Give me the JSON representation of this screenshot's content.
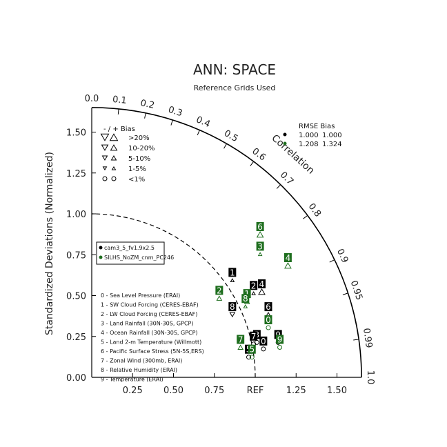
{
  "chart_data": {
    "type": "scatter",
    "title": "ANN: SPACE",
    "subtitle": "Reference Grids Used",
    "ylabel": "Standardized Deviations (Normalized)",
    "correlation_label": "Correlation",
    "std_range": [
      0,
      1.65
    ],
    "x_ticks": [
      {
        "value": 0.25,
        "label": "0.25"
      },
      {
        "value": 0.5,
        "label": "0.50"
      },
      {
        "value": 0.75,
        "label": "0.75"
      },
      {
        "value": 1.0,
        "label": "REF"
      },
      {
        "value": 1.25,
        "label": "1.25"
      },
      {
        "value": 1.5,
        "label": "1.50"
      }
    ],
    "y_ticks": [
      {
        "value": 0.0,
        "label": "0.00"
      },
      {
        "value": 0.25,
        "label": "0.25"
      },
      {
        "value": 0.5,
        "label": "0.50"
      },
      {
        "value": 0.75,
        "label": "0.75"
      },
      {
        "value": 1.0,
        "label": "1.00"
      },
      {
        "value": 1.25,
        "label": "1.25"
      },
      {
        "value": 1.5,
        "label": "1.50"
      }
    ],
    "corr_ticks": [
      {
        "value": 0.0,
        "label": "0.0"
      },
      {
        "value": 0.1,
        "label": "0.1"
      },
      {
        "value": 0.2,
        "label": "0.2"
      },
      {
        "value": 0.3,
        "label": "0.3"
      },
      {
        "value": 0.4,
        "label": "0.4"
      },
      {
        "value": 0.5,
        "label": "0.5"
      },
      {
        "value": 0.6,
        "label": "0.6"
      },
      {
        "value": 0.7,
        "label": "0.7"
      },
      {
        "value": 0.8,
        "label": "0.8"
      },
      {
        "value": 0.9,
        "label": "0.9"
      },
      {
        "value": 0.95,
        "label": "0.95"
      },
      {
        "value": 0.99,
        "label": "0.99"
      },
      {
        "value": 1.0,
        "label": "1.0"
      }
    ],
    "reference_arc_std": 1.0,
    "bias_legend": {
      "header": "-  /  +      Bias",
      "rows": [
        {
          "label": ">20%",
          "size": 11
        },
        {
          "label": "10-20%",
          "size": 9
        },
        {
          "label": "5-10%",
          "size": 7
        },
        {
          "label": "1-5%",
          "size": 5
        },
        {
          "label": "<1%",
          "size": 0
        }
      ]
    },
    "rmse_header": "RMSE  Bias",
    "series": [
      {
        "name": "cam3_5_fv1.9x2.5",
        "color": "#000000",
        "rmse": "1.000",
        "bias": "1.000"
      },
      {
        "name": "SILHS_NoZM_cnm_PC246",
        "color": "#1e6e1e",
        "rmse": "1.208",
        "bias": "1.324"
      }
    ],
    "variables": [
      "0 - Sea Level Pressure (ERAI)",
      "1 - SW Cloud Forcing (CERES-EBAF)",
      "2 - LW Cloud Forcing (CERES-EBAF)",
      "3 - Land Rainfall (30N-30S, GPCP)",
      "4 - Ocean Rainfall (30N-30S, GPCP)",
      "5 - Land 2-m Temperature (Willmott)",
      "6 - Pacific Surface Stress (5N-5S,ERS)",
      "7 - Zonal Wind (300mb, ERAI)",
      "8 - Relative Humidity (ERAI)",
      "9 - Temperature (ERAI)"
    ],
    "points": [
      {
        "series": 0,
        "id": "0",
        "x": 1.05,
        "y": 0.22,
        "bias_sign": "-",
        "bias_size": 0
      },
      {
        "series": 0,
        "id": "1",
        "x": 0.86,
        "y": 0.64,
        "bias_sign": "+",
        "bias_size": 5
      },
      {
        "series": 0,
        "id": "2",
        "x": 0.99,
        "y": 0.56,
        "bias_sign": "+",
        "bias_size": 5
      },
      {
        "series": 0,
        "id": "3",
        "x": 1.01,
        "y": 0.26,
        "bias_sign": "-",
        "bias_size": 0
      },
      {
        "series": 0,
        "id": "4",
        "x": 1.04,
        "y": 0.57,
        "bias_sign": "+",
        "bias_size": 9
      },
      {
        "series": 0,
        "id": "5",
        "x": 0.96,
        "y": 0.17,
        "bias_sign": "-",
        "bias_size": 0
      },
      {
        "series": 0,
        "id": "6",
        "x": 1.08,
        "y": 0.43,
        "bias_sign": "+",
        "bias_size": 7
      },
      {
        "series": 0,
        "id": "7",
        "x": 0.99,
        "y": 0.25,
        "bias_sign": "-",
        "bias_size": 0
      },
      {
        "series": 0,
        "id": "8",
        "x": 0.86,
        "y": 0.43,
        "bias_sign": "-",
        "bias_size": 7
      },
      {
        "series": 0,
        "id": "9",
        "x": 1.14,
        "y": 0.26,
        "bias_sign": "-",
        "bias_size": 0
      },
      {
        "series": 1,
        "id": "0",
        "x": 1.08,
        "y": 0.35,
        "bias_sign": "-",
        "bias_size": 0
      },
      {
        "series": 1,
        "id": "1",
        "x": 0.95,
        "y": 0.51,
        "bias_sign": "+",
        "bias_size": 7
      },
      {
        "series": 1,
        "id": "2",
        "x": 0.78,
        "y": 0.53,
        "bias_sign": "+",
        "bias_size": 7
      },
      {
        "series": 1,
        "id": "3",
        "x": 1.03,
        "y": 0.8,
        "bias_sign": "+",
        "bias_size": 5
      },
      {
        "series": 1,
        "id": "4",
        "x": 1.2,
        "y": 0.73,
        "bias_sign": "+",
        "bias_size": 9
      },
      {
        "series": 1,
        "id": "5",
        "x": 0.98,
        "y": 0.17,
        "bias_sign": "-",
        "bias_size": 0
      },
      {
        "series": 1,
        "id": "6",
        "x": 1.03,
        "y": 0.92,
        "bias_sign": "+",
        "bias_size": 9
      },
      {
        "series": 1,
        "id": "7",
        "x": 0.91,
        "y": 0.23,
        "bias_sign": "+",
        "bias_size": 7
      },
      {
        "series": 1,
        "id": "8",
        "x": 0.94,
        "y": 0.48,
        "bias_sign": "+",
        "bias_size": 5
      },
      {
        "series": 1,
        "id": "9",
        "x": 1.15,
        "y": 0.23,
        "bias_sign": "-",
        "bias_size": 0
      }
    ]
  }
}
